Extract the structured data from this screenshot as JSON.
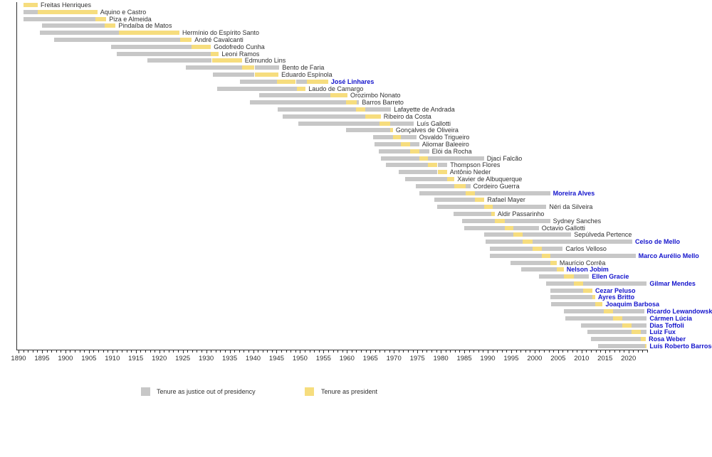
{
  "chart_data": {
    "type": "bar",
    "variant": "gantt-timeline",
    "title": "",
    "xlabel": "",
    "ylabel": "",
    "x_axis": {
      "min": 1890,
      "max": 2024,
      "major_tick_step": 5,
      "minor_tick_step": 1,
      "major_tick_labels": [
        "1890",
        "1895",
        "1900",
        "1905",
        "1910",
        "1915",
        "1920",
        "1925",
        "1930",
        "1935",
        "1940",
        "1945",
        "1950",
        "1955",
        "1960",
        "1965",
        "1970",
        "1975",
        "1980",
        "1985",
        "1990",
        "1995",
        "2000",
        "2005",
        "2010",
        "2015",
        "2020"
      ]
    },
    "colors": {
      "tenure_gray": "#c7c7c7",
      "president_yellow": "#f6dd7e",
      "label_black": "#303030",
      "label_blue": "#1414cc",
      "axis": "#303030"
    },
    "legend": [
      {
        "label": "Tenure as justice out of presidency",
        "color": "#c7c7c7"
      },
      {
        "label": "Tenure as president",
        "color": "#f6dd7e"
      }
    ],
    "justices": [
      {
        "name": "Freitas Henriques",
        "label_color": "black",
        "start": 1891.0,
        "end": 1894.1,
        "presidencies": [
          [
            1891.0,
            1894.1
          ]
        ]
      },
      {
        "name": "Aquino e Castro",
        "label_color": "black",
        "start": 1891.0,
        "end": 1906.8,
        "presidencies": [
          [
            1894.1,
            1906.8
          ]
        ]
      },
      {
        "name": "Piza e Almeida",
        "label_color": "black",
        "start": 1891.0,
        "end": 1908.7,
        "presidencies": [
          [
            1906.4,
            1908.7
          ]
        ]
      },
      {
        "name": "Pindaíba de Matos",
        "label_color": "black",
        "start": 1895.0,
        "end": 1910.7,
        "presidencies": [
          [
            1908.4,
            1910.7
          ]
        ]
      },
      {
        "name": "Hermínio do Espírito Santo",
        "label_color": "black",
        "start": 1894.6,
        "end": 1924.3,
        "presidencies": [
          [
            1911.4,
            1924.3
          ]
        ]
      },
      {
        "name": "André Cavalcanti",
        "label_color": "black",
        "start": 1897.6,
        "end": 1926.9,
        "presidencies": [
          [
            1924.5,
            1926.9
          ]
        ]
      },
      {
        "name": "Godofredo Cunha",
        "label_color": "black",
        "start": 1909.7,
        "end": 1931.0,
        "presidencies": [
          [
            1926.9,
            1931.0
          ]
        ]
      },
      {
        "name": "Leoni Ramos",
        "label_color": "black",
        "start": 1910.9,
        "end": 1932.7,
        "presidencies": [
          [
            1931.0,
            1932.7
          ]
        ]
      },
      {
        "name": "Edmundo Lins",
        "label_color": "black",
        "start": 1917.5,
        "end": 1937.6,
        "presidencies": [
          [
            1931.2,
            1937.6
          ]
        ]
      },
      {
        "name": "Bento de Faria",
        "label_color": "black",
        "start": 1925.6,
        "end": 1945.6,
        "presidencies": [
          [
            1937.6,
            1940.3
          ]
        ]
      },
      {
        "name": "Eduardo Espínola",
        "label_color": "black",
        "start": 1931.4,
        "end": 1945.4,
        "presidencies": [
          [
            1940.3,
            1945.4
          ]
        ]
      },
      {
        "name": "José Linhares",
        "label_color": "blue",
        "start": 1937.2,
        "end": 1956.0,
        "presidencies": [
          [
            1945.1,
            1949.1
          ],
          [
            1951.4,
            1956.0
          ]
        ]
      },
      {
        "name": "Laudo de Camargo",
        "label_color": "black",
        "start": 1932.4,
        "end": 1951.2,
        "presidencies": [
          [
            1949.4,
            1951.2
          ]
        ]
      },
      {
        "name": "Orozimbo Nonato",
        "label_color": "black",
        "start": 1941.3,
        "end": 1960.1,
        "presidencies": [
          [
            1956.4,
            1960.1
          ]
        ]
      },
      {
        "name": "Barros Barreto",
        "label_color": "black",
        "start": 1939.3,
        "end": 1962.6,
        "presidencies": [
          [
            1959.8,
            1962.1
          ]
        ]
      },
      {
        "name": "Lafayette de Andrada",
        "label_color": "black",
        "start": 1945.3,
        "end": 1969.4,
        "presidencies": [
          [
            1961.9,
            1963.9
          ]
        ]
      },
      {
        "name": "Ribeiro da Costa",
        "label_color": "black",
        "start": 1946.3,
        "end": 1967.2,
        "presidencies": [
          [
            1963.9,
            1967.2
          ]
        ]
      },
      {
        "name": "Luís Gallotti",
        "label_color": "black",
        "start": 1949.7,
        "end": 1974.3,
        "presidencies": [
          [
            1966.9,
            1969.2
          ]
        ]
      },
      {
        "name": "Gonçalves de Oliveira",
        "label_color": "black",
        "start": 1959.8,
        "end": 1969.8,
        "presidencies": [
          [
            1969.2,
            1969.8
          ]
        ]
      },
      {
        "name": "Osvaldo Trigueiro",
        "label_color": "black",
        "start": 1965.6,
        "end": 1974.8,
        "presidencies": [
          [
            1969.8,
            1971.5
          ]
        ]
      },
      {
        "name": "Aliomar Baleeiro",
        "label_color": "black",
        "start": 1965.8,
        "end": 1975.4,
        "presidencies": [
          [
            1971.5,
            1973.4
          ]
        ]
      },
      {
        "name": "Elói da Rocha",
        "label_color": "black",
        "start": 1966.8,
        "end": 1977.5,
        "presidencies": [
          [
            1973.4,
            1975.4
          ]
        ]
      },
      {
        "name": "Djaci Falcão",
        "label_color": "black",
        "start": 1967.3,
        "end": 1989.2,
        "presidencies": [
          [
            1975.4,
            1977.2
          ]
        ]
      },
      {
        "name": "Thompson Flores",
        "label_color": "black",
        "start": 1968.3,
        "end": 1981.4,
        "presidencies": [
          [
            1977.2,
            1979.3
          ]
        ]
      },
      {
        "name": "Antônio Neder",
        "label_color": "black",
        "start": 1971.1,
        "end": 1981.3,
        "presidencies": [
          [
            1979.3,
            1981.3
          ]
        ]
      },
      {
        "name": "Xavier de Albuquerque",
        "label_color": "black",
        "start": 1972.4,
        "end": 1982.9,
        "presidencies": [
          [
            1981.3,
            1982.9
          ]
        ]
      },
      {
        "name": "Cordeiro Guerra",
        "label_color": "black",
        "start": 1974.7,
        "end": 1986.3,
        "presidencies": [
          [
            1982.9,
            1985.3
          ]
        ]
      },
      {
        "name": "Moreira Alves",
        "label_color": "blue",
        "start": 1975.4,
        "end": 2003.3,
        "presidencies": [
          [
            1985.3,
            1987.3
          ]
        ]
      },
      {
        "name": "Rafael Mayer",
        "label_color": "black",
        "start": 1978.6,
        "end": 1989.3,
        "presidencies": [
          [
            1987.3,
            1989.3
          ]
        ]
      },
      {
        "name": "Néri da Silveira",
        "label_color": "black",
        "start": 1979.2,
        "end": 2002.5,
        "presidencies": [
          [
            1989.3,
            1991.0
          ]
        ]
      },
      {
        "name": "Aldir Passarinho",
        "label_color": "black",
        "start": 1982.7,
        "end": 1991.5,
        "presidencies": [
          [
            1990.8,
            1991.5
          ]
        ]
      },
      {
        "name": "Sydney Sanches",
        "label_color": "black",
        "start": 1984.5,
        "end": 2003.3,
        "presidencies": [
          [
            1991.5,
            1993.6
          ]
        ]
      },
      {
        "name": "Octavio Gallotti",
        "label_color": "black",
        "start": 1985.0,
        "end": 2000.9,
        "presidencies": [
          [
            1993.6,
            1995.5
          ]
        ]
      },
      {
        "name": "Sepúlveda Pertence",
        "label_color": "black",
        "start": 1989.3,
        "end": 2007.8,
        "presidencies": [
          [
            1995.5,
            1997.4
          ]
        ]
      },
      {
        "name": "Celso de Mello",
        "label_color": "blue",
        "start": 1989.6,
        "end": 2020.8,
        "presidencies": [
          [
            1997.4,
            1999.5
          ]
        ]
      },
      {
        "name": "Carlos Velloso",
        "label_color": "black",
        "start": 1990.5,
        "end": 2006.0,
        "presidencies": [
          [
            1999.5,
            2001.5
          ]
        ]
      },
      {
        "name": "Marco Aurélio Mello",
        "label_color": "blue",
        "start": 1990.5,
        "end": 2021.5,
        "presidencies": [
          [
            2001.5,
            2003.4
          ]
        ]
      },
      {
        "name": "Maurício Corrêa",
        "label_color": "black",
        "start": 1994.9,
        "end": 2004.7,
        "presidencies": [
          [
            2003.4,
            2004.7
          ]
        ]
      },
      {
        "name": "Nelson Jobim",
        "label_color": "blue",
        "start": 1997.2,
        "end": 2006.2,
        "presidencies": [
          [
            2004.7,
            2006.2
          ]
        ]
      },
      {
        "name": "Ellen Gracie",
        "label_color": "blue",
        "start": 2000.9,
        "end": 2011.6,
        "presidencies": [
          [
            2006.2,
            2008.3
          ]
        ]
      },
      {
        "name": "Gilmar Mendes",
        "label_color": "blue",
        "start": 2002.5,
        "end": 2023.9,
        "presidencies": [
          [
            2008.3,
            2010.3
          ]
        ]
      },
      {
        "name": "Cezar Peluso",
        "label_color": "blue",
        "start": 2003.3,
        "end": 2012.3,
        "presidencies": [
          [
            2010.3,
            2012.3
          ]
        ]
      },
      {
        "name": "Ayres Britto",
        "label_color": "blue",
        "start": 2003.3,
        "end": 2012.9,
        "presidencies": [
          [
            2012.3,
            2012.9
          ]
        ]
      },
      {
        "name": "Joaquim Barbosa",
        "label_color": "blue",
        "start": 2003.5,
        "end": 2014.5,
        "presidencies": [
          [
            2012.9,
            2014.5
          ]
        ]
      },
      {
        "name": "Ricardo Lewandowski",
        "label_color": "blue",
        "start": 2006.2,
        "end": 2023.3,
        "presidencies": [
          [
            2014.7,
            2016.7
          ]
        ]
      },
      {
        "name": "Cármen Lúcia",
        "label_color": "blue",
        "start": 2006.5,
        "end": 2023.9,
        "presidencies": [
          [
            2016.7,
            2018.7
          ]
        ]
      },
      {
        "name": "Dias Toffoli",
        "label_color": "blue",
        "start": 2009.8,
        "end": 2023.9,
        "presidencies": [
          [
            2018.7,
            2020.7
          ]
        ]
      },
      {
        "name": "Luiz Fux",
        "label_color": "blue",
        "start": 2011.2,
        "end": 2023.9,
        "presidencies": [
          [
            2020.7,
            2022.6
          ]
        ]
      },
      {
        "name": "Rosa Weber",
        "label_color": "blue",
        "start": 2012.0,
        "end": 2023.7,
        "presidencies": [
          [
            2022.6,
            2023.7
          ]
        ]
      },
      {
        "name": "Luís Roberto Barroso",
        "label_color": "blue",
        "start": 2013.5,
        "end": 2023.9,
        "presidencies": [
          [
            2023.5,
            2023.9
          ]
        ]
      }
    ]
  }
}
